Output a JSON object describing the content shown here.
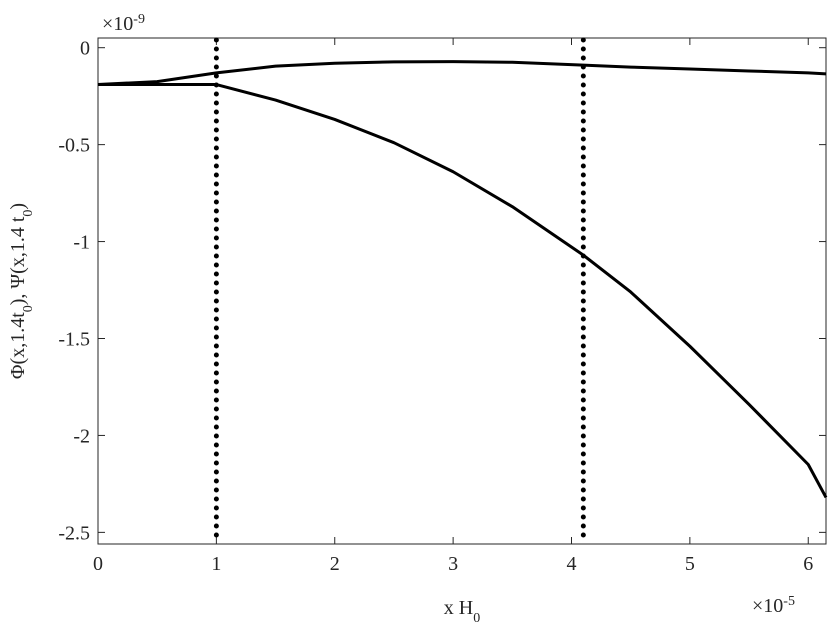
{
  "chart_data": {
    "type": "line",
    "xlabel": [
      "x H",
      "0"
    ],
    "ylabel": [
      "Φ(x,1.4t",
      "0",
      "), Ψ(x,1.4 t",
      "0",
      ")"
    ],
    "x_multiplier": [
      "×10",
      "-5"
    ],
    "y_multiplier": [
      "×10",
      "-9"
    ],
    "x": [
      0,
      0.5,
      1,
      1.5,
      2,
      2.5,
      3,
      3.5,
      4.1,
      4.5,
      5,
      5.5,
      6,
      6.15
    ],
    "series": [
      {
        "color": "#000000",
        "values": [
          -0.19,
          -0.175,
          -0.13,
          -0.095,
          -0.08,
          -0.073,
          -0.072,
          -0.075,
          -0.09,
          -0.1,
          -0.11,
          -0.12,
          -0.13,
          -0.135
        ]
      },
      {
        "color": "#000000",
        "values": [
          -0.19,
          -0.19,
          -0.19,
          -0.27,
          -0.37,
          -0.49,
          -0.64,
          -0.82,
          -1.07,
          -1.26,
          -1.54,
          -1.84,
          -2.15,
          -2.32
        ]
      }
    ],
    "vlines": [
      1,
      4.1
    ],
    "xlim": [
      0,
      6.15
    ],
    "ylim": [
      -2.56,
      0.05
    ],
    "xticks": [
      0,
      1,
      2,
      3,
      4,
      5,
      6
    ],
    "yticks": [
      0,
      -0.5,
      -1,
      -1.5,
      -2,
      -2.5
    ],
    "grid": false
  }
}
